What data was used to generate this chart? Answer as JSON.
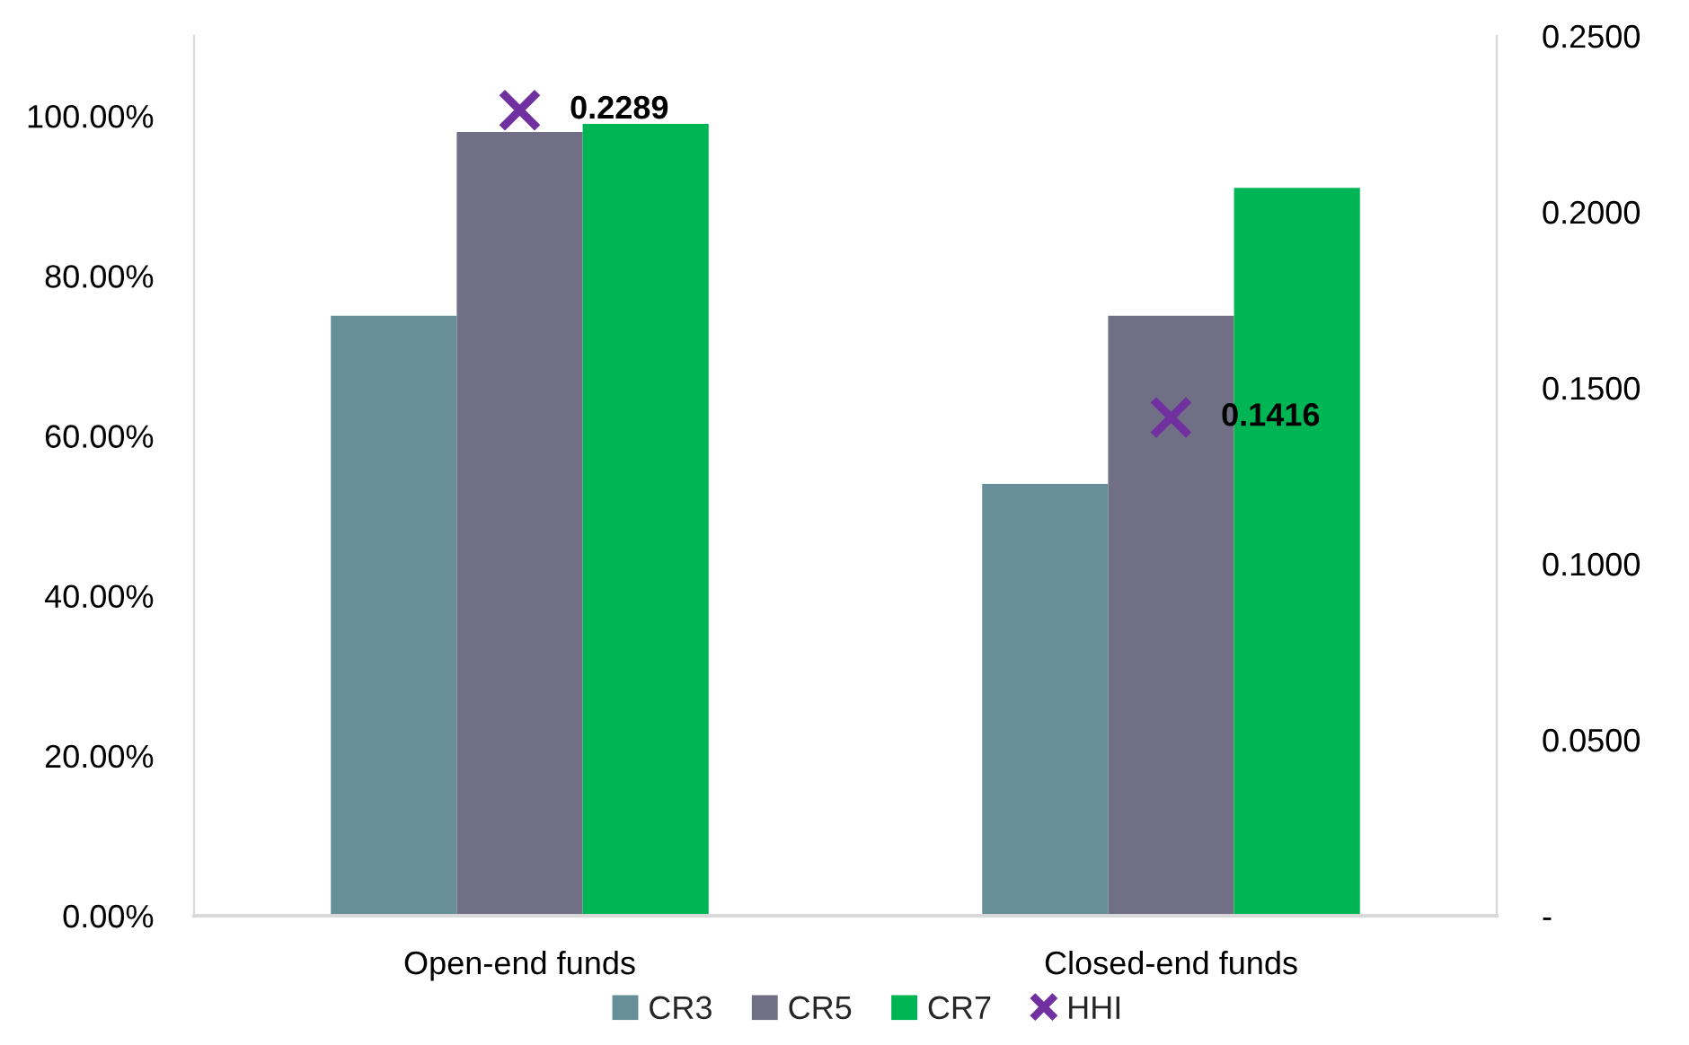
{
  "chart_data": {
    "type": "bar",
    "categories": [
      "Open-end funds",
      "Closed-end funds"
    ],
    "series": [
      {
        "name": "CR3",
        "color": "#668f9a",
        "values": [
          0.75,
          0.54
        ]
      },
      {
        "name": "CR5",
        "color": "#716f85",
        "values": [
          0.98,
          0.75
        ]
      },
      {
        "name": "CR7",
        "color": "#00b554",
        "values": [
          0.99,
          0.91
        ]
      },
      {
        "name": "HHI",
        "type": "scatter",
        "axis": "y2",
        "marker": "cross",
        "color": "#7030a0",
        "values": [
          0.2289,
          0.1416
        ],
        "value_labels": [
          "0.2289",
          "0.1416"
        ]
      }
    ],
    "ylim": [
      0,
      1.1
    ],
    "yticks": [
      {
        "value": 0,
        "label": "0.00%"
      },
      {
        "value": 0.2,
        "label": "20.00%"
      },
      {
        "value": 0.4,
        "label": "40.00%"
      },
      {
        "value": 0.6,
        "label": "60.00%"
      },
      {
        "value": 0.8,
        "label": "80.00%"
      },
      {
        "value": 1.0,
        "label": "100.00%"
      }
    ],
    "y2lim": [
      0,
      0.25
    ],
    "y2ticks": [
      {
        "value": 0,
        "label": "-"
      },
      {
        "value": 0.05,
        "label": "0.0500"
      },
      {
        "value": 0.1,
        "label": "0.1000"
      },
      {
        "value": 0.15,
        "label": "0.1500"
      },
      {
        "value": 0.2,
        "label": "0.2000"
      },
      {
        "value": 0.25,
        "label": "0.2500"
      }
    ],
    "legend": "bottom"
  }
}
